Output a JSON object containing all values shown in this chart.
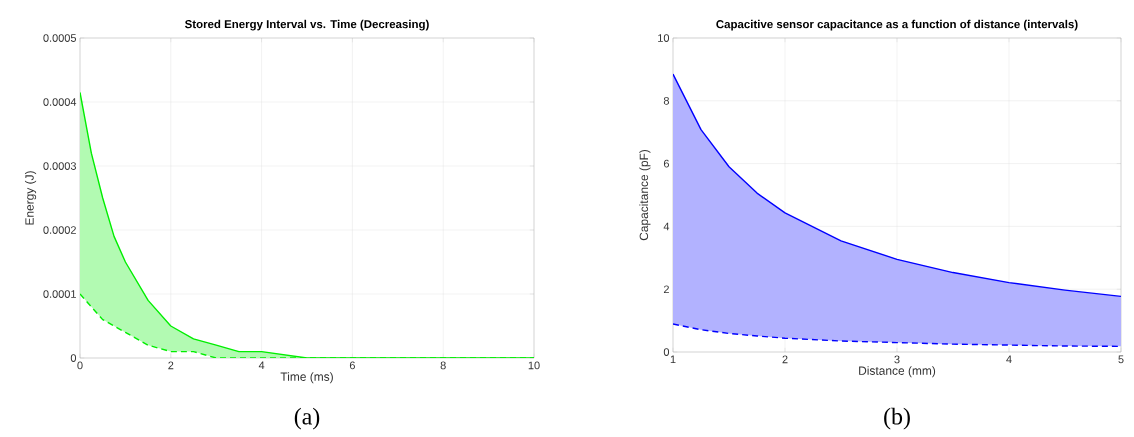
{
  "chart_data": [
    {
      "type": "line",
      "title": "Stored Energy Interval vs. Time (Decreasing)",
      "xlabel": "Time (ms)",
      "ylabel": "Energy (J)",
      "x": [
        0,
        0.25,
        0.5,
        0.75,
        1,
        1.5,
        2,
        2.5,
        3,
        3.5,
        4,
        5,
        6,
        8,
        10
      ],
      "series": [
        {
          "color": "#00ee00",
          "line_style": "solid",
          "values": [
            0.000415,
            0.00032,
            0.00025,
            0.00019,
            0.00015,
            9e-05,
            5e-05,
            3e-05,
            2e-05,
            1e-05,
            1e-05,
            0,
            0,
            0,
            0
          ],
          "lower": [
            0.0001,
            8e-05,
            6e-05,
            5e-05,
            4e-05,
            2e-05,
            1e-05,
            1e-05,
            0,
            0,
            0,
            0,
            0,
            0,
            0
          ],
          "upper": [
            0.000415,
            0.00032,
            0.00025,
            0.00019,
            0.00015,
            9e-05,
            5e-05,
            3e-05,
            2e-05,
            1e-05,
            1e-05,
            0,
            0,
            0,
            0
          ]
        },
        {
          "color": "#00ee00",
          "line_style": "dashed",
          "values": [
            0.0001,
            8e-05,
            6e-05,
            5e-05,
            4e-05,
            2e-05,
            1e-05,
            1e-05,
            0,
            0,
            0,
            0,
            0,
            0,
            0
          ]
        }
      ],
      "xlim": [
        0,
        10
      ],
      "xticks": [
        0,
        2,
        4,
        6,
        8,
        10
      ],
      "ylim": [
        0,
        0.0005
      ],
      "yticks": [
        0,
        0.0001,
        0.0002,
        0.0003,
        0.0004,
        0.0005
      ],
      "grid": true,
      "annotations": [
        "(a)"
      ]
    },
    {
      "type": "line",
      "title": "Capacitive sensor capacitance as a function of distance (intervals)",
      "xlabel": "Distance (mm)",
      "ylabel": "Capacitance (pF)",
      "x": [
        1,
        1.25,
        1.5,
        1.75,
        2,
        2.5,
        3,
        3.5,
        4,
        4.5,
        5
      ],
      "series": [
        {
          "color": "#0000ff",
          "line_style": "solid",
          "values": [
            8.85,
            7.08,
            5.9,
            5.06,
            4.43,
            3.54,
            2.95,
            2.53,
            2.21,
            1.97,
            1.77
          ],
          "lower": [
            0.89,
            0.71,
            0.59,
            0.51,
            0.44,
            0.35,
            0.3,
            0.25,
            0.22,
            0.19,
            0.18
          ],
          "upper": [
            8.85,
            7.08,
            5.9,
            5.06,
            4.43,
            3.54,
            2.95,
            2.53,
            2.21,
            1.97,
            1.77
          ]
        },
        {
          "color": "#0000ff",
          "line_style": "dashed",
          "values": [
            0.89,
            0.71,
            0.59,
            0.51,
            0.44,
            0.35,
            0.3,
            0.25,
            0.22,
            0.19,
            0.18
          ]
        }
      ],
      "xlim": [
        1,
        5
      ],
      "xticks": [
        1,
        2,
        3,
        4,
        5
      ],
      "ylim": [
        0,
        10
      ],
      "yticks": [
        0,
        2,
        4,
        6,
        8,
        10
      ],
      "grid": true,
      "annotations": [
        "(b)"
      ]
    }
  ]
}
